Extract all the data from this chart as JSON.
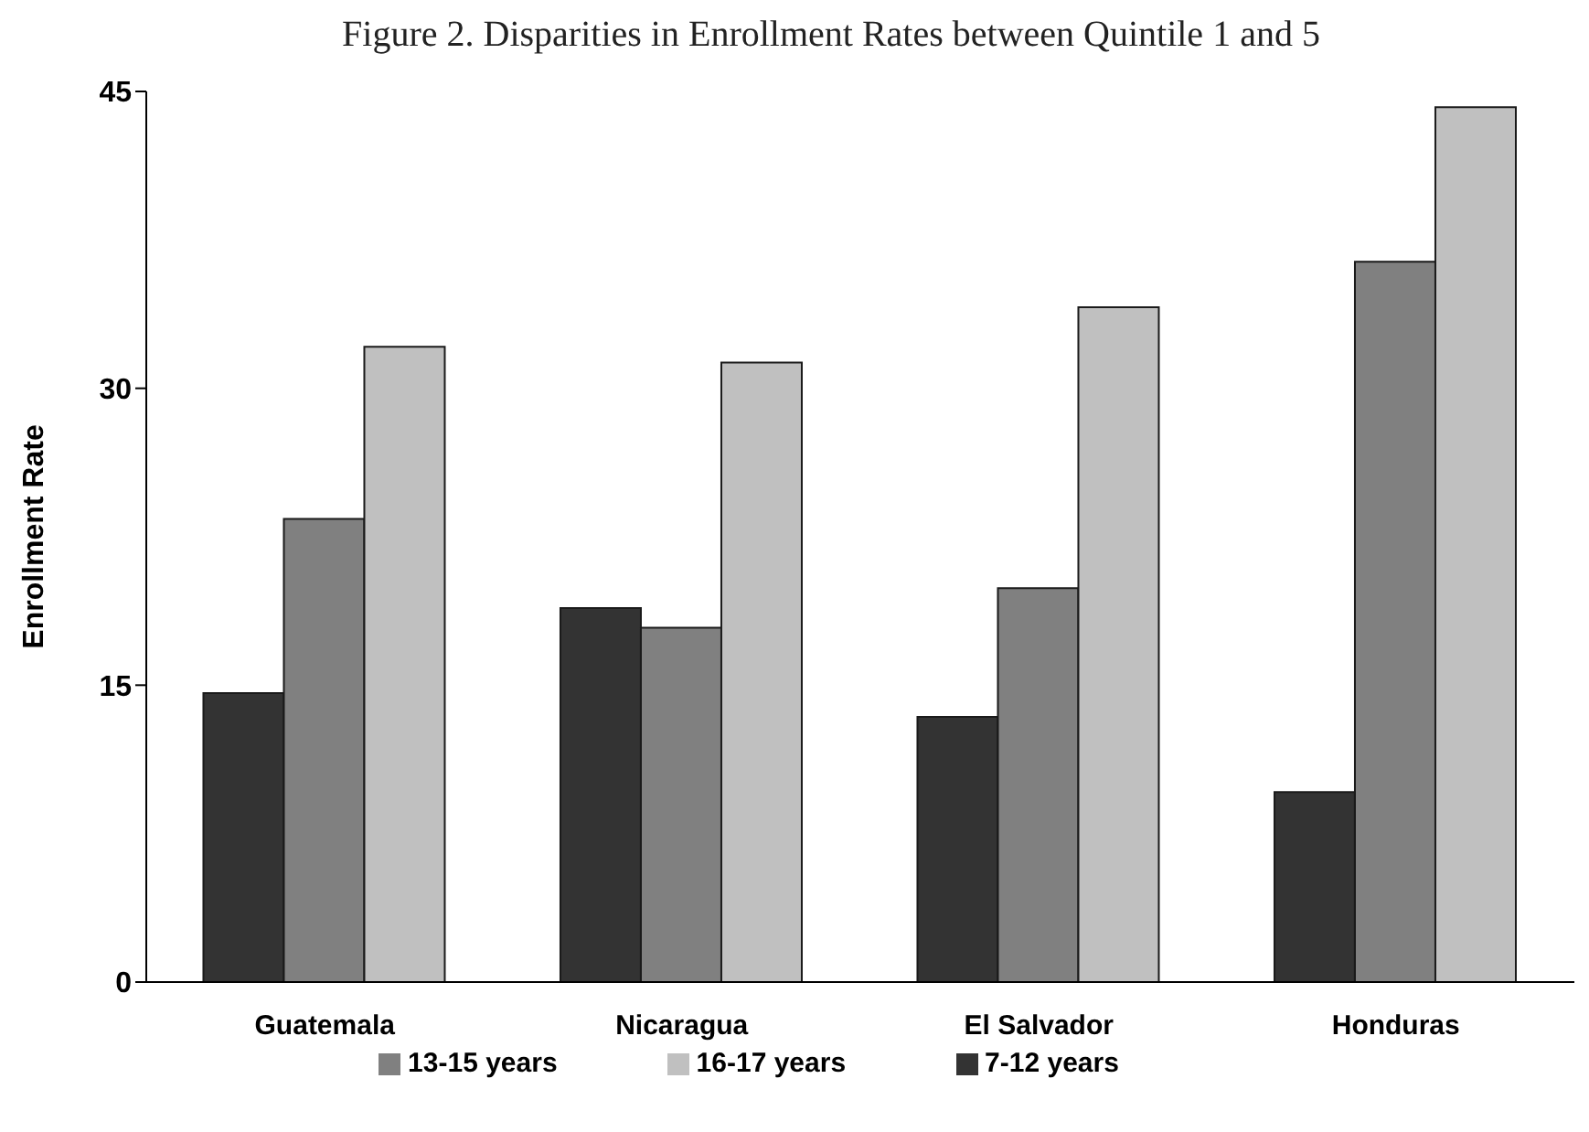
{
  "chart_data": {
    "type": "bar",
    "title": "Figure 2. Disparities in Enrollment Rates between Quintile 1 and 5",
    "ylabel": "Enrollment Rate",
    "categories": [
      "Guatemala",
      "Nicaragua",
      "El Salvador",
      "Honduras"
    ],
    "series": [
      {
        "name": "7-12 years",
        "color": "#333333",
        "values": [
          14.6,
          18.9,
          13.4,
          9.6
        ]
      },
      {
        "name": "13-15 years",
        "color": "#808080",
        "values": [
          23.4,
          17.9,
          19.9,
          36.4
        ]
      },
      {
        "name": "16-17 years",
        "color": "#c0c0c0",
        "values": [
          32.1,
          31.3,
          34.1,
          44.2
        ]
      }
    ],
    "ylim": [
      0,
      45
    ],
    "yticks": [
      0,
      15,
      30,
      45
    ],
    "grid": false,
    "legend": "bottom"
  }
}
